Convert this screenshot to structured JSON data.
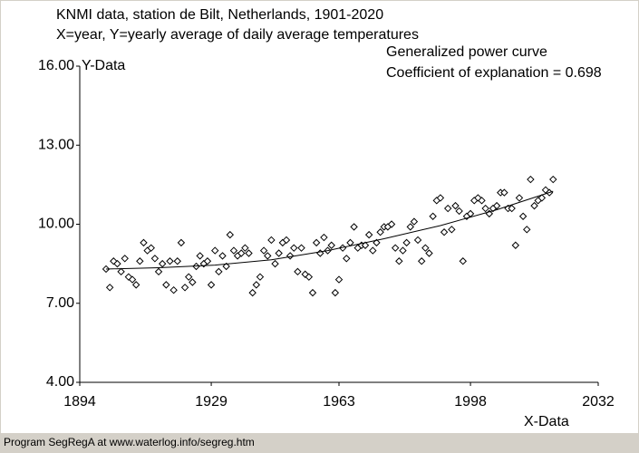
{
  "chart_data": {
    "type": "scatter",
    "title": "KNMI data, station de Bilt, Netherlands, 1901-2020",
    "subtitle": "X=year, Y=yearly average of daily average temperatures",
    "xlabel": "X-Data",
    "ylabel": "Y-Data",
    "annotation": "Coefficient of explanation = 0.698",
    "xlim": [
      1894,
      2032
    ],
    "xticks": [
      1894,
      1929,
      1963,
      1998,
      2032
    ],
    "ylim": [
      4,
      16
    ],
    "yticks": [
      {
        "value": 4,
        "label": "4.00"
      },
      {
        "value": 7,
        "label": "7.00"
      },
      {
        "value": 10,
        "label": "10.00"
      },
      {
        "value": 13,
        "label": "13.00"
      },
      {
        "value": 16,
        "label": "16.00"
      }
    ],
    "grid": false,
    "series": [
      {
        "type": "scatter",
        "marker": "diamond",
        "color": "#000000",
        "x": [
          1901,
          1902,
          1903,
          1904,
          1905,
          1906,
          1907,
          1908,
          1909,
          1910,
          1911,
          1912,
          1913,
          1914,
          1915,
          1916,
          1917,
          1918,
          1919,
          1920,
          1921,
          1922,
          1923,
          1924,
          1925,
          1926,
          1927,
          1928,
          1929,
          1930,
          1931,
          1932,
          1933,
          1934,
          1935,
          1936,
          1937,
          1938,
          1939,
          1940,
          1941,
          1942,
          1943,
          1944,
          1945,
          1946,
          1947,
          1948,
          1949,
          1950,
          1951,
          1952,
          1953,
          1954,
          1955,
          1956,
          1957,
          1958,
          1959,
          1960,
          1961,
          1962,
          1963,
          1964,
          1965,
          1966,
          1967,
          1968,
          1969,
          1970,
          1971,
          1972,
          1973,
          1974,
          1975,
          1976,
          1977,
          1978,
          1979,
          1980,
          1981,
          1982,
          1983,
          1984,
          1985,
          1986,
          1987,
          1988,
          1989,
          1990,
          1991,
          1992,
          1993,
          1994,
          1995,
          1996,
          1997,
          1998,
          1999,
          2000,
          2001,
          2002,
          2003,
          2004,
          2005,
          2006,
          2007,
          2008,
          2009,
          2010,
          2011,
          2012,
          2013,
          2014,
          2015,
          2016,
          2017,
          2018,
          2019,
          2020
        ],
        "values": [
          8.3,
          7.6,
          8.6,
          8.5,
          8.2,
          8.7,
          8.0,
          7.9,
          7.7,
          8.6,
          9.3,
          9.0,
          9.1,
          8.7,
          8.2,
          8.5,
          7.7,
          8.6,
          7.5,
          8.6,
          9.3,
          7.6,
          8.0,
          7.8,
          8.4,
          8.8,
          8.5,
          8.6,
          7.7,
          9.0,
          8.2,
          8.8,
          8.4,
          9.6,
          9.0,
          8.8,
          8.9,
          9.1,
          8.9,
          7.4,
          7.7,
          8.0,
          9.0,
          8.8,
          9.4,
          8.5,
          8.9,
          9.3,
          9.4,
          8.8,
          9.1,
          8.2,
          9.1,
          8.1,
          8.0,
          7.4,
          9.3,
          8.9,
          9.5,
          9.0,
          9.2,
          7.4,
          7.9,
          9.1,
          8.7,
          9.3,
          9.9,
          9.1,
          9.2,
          9.2,
          9.6,
          9.0,
          9.3,
          9.7,
          9.9,
          9.9,
          10.0,
          9.1,
          8.6,
          9.0,
          9.3,
          9.9,
          10.1,
          9.4,
          8.6,
          9.1,
          8.9,
          10.3,
          10.9,
          11.0,
          9.7,
          10.6,
          9.8,
          10.7,
          10.5,
          8.6,
          10.3,
          10.4,
          10.9,
          11.0,
          10.9,
          10.6,
          10.4,
          10.6,
          10.7,
          11.2,
          11.2,
          10.6,
          10.6,
          9.2,
          11.0,
          10.3,
          9.8,
          11.7,
          10.7,
          10.9,
          11.0,
          11.3,
          11.2,
          11.7
        ]
      },
      {
        "type": "line",
        "name": "Generalized power curve",
        "color": "#000000",
        "x": [
          1901,
          1915,
          1930,
          1945,
          1960,
          1975,
          1990,
          2005,
          2020
        ],
        "values": [
          8.3,
          8.35,
          8.45,
          8.65,
          9.0,
          9.45,
          9.95,
          10.55,
          11.25
        ]
      }
    ]
  },
  "footer": "Program SegRegA at www.waterlog.info/segreg.htm"
}
